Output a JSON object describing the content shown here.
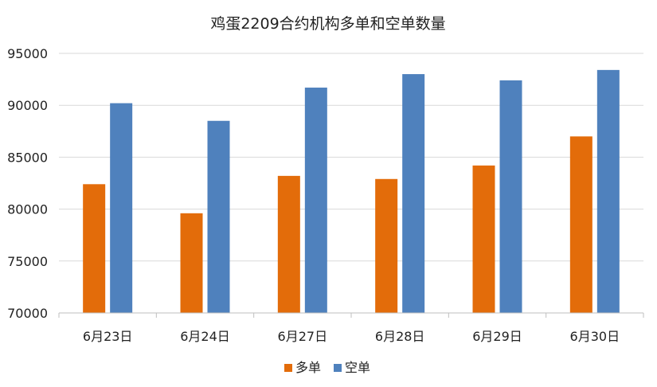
{
  "chart_data": {
    "type": "bar",
    "title": "鸡蛋2209合约机构多单和空单数量",
    "categories": [
      "6月23日",
      "6月24日",
      "6月27日",
      "6月28日",
      "6月29日",
      "6月30日"
    ],
    "series": [
      {
        "name": "多单",
        "color": "#E36C0A",
        "values": [
          82400,
          79600,
          83200,
          82900,
          84200,
          87000
        ]
      },
      {
        "name": "空单",
        "color": "#4F81BD",
        "values": [
          90200,
          88500,
          91700,
          93000,
          92400,
          93400
        ]
      }
    ],
    "ylim": [
      70000,
      95000
    ],
    "yticks": [
      70000,
      75000,
      80000,
      85000,
      90000,
      95000
    ],
    "grid": true,
    "legend": "bottom-center"
  }
}
